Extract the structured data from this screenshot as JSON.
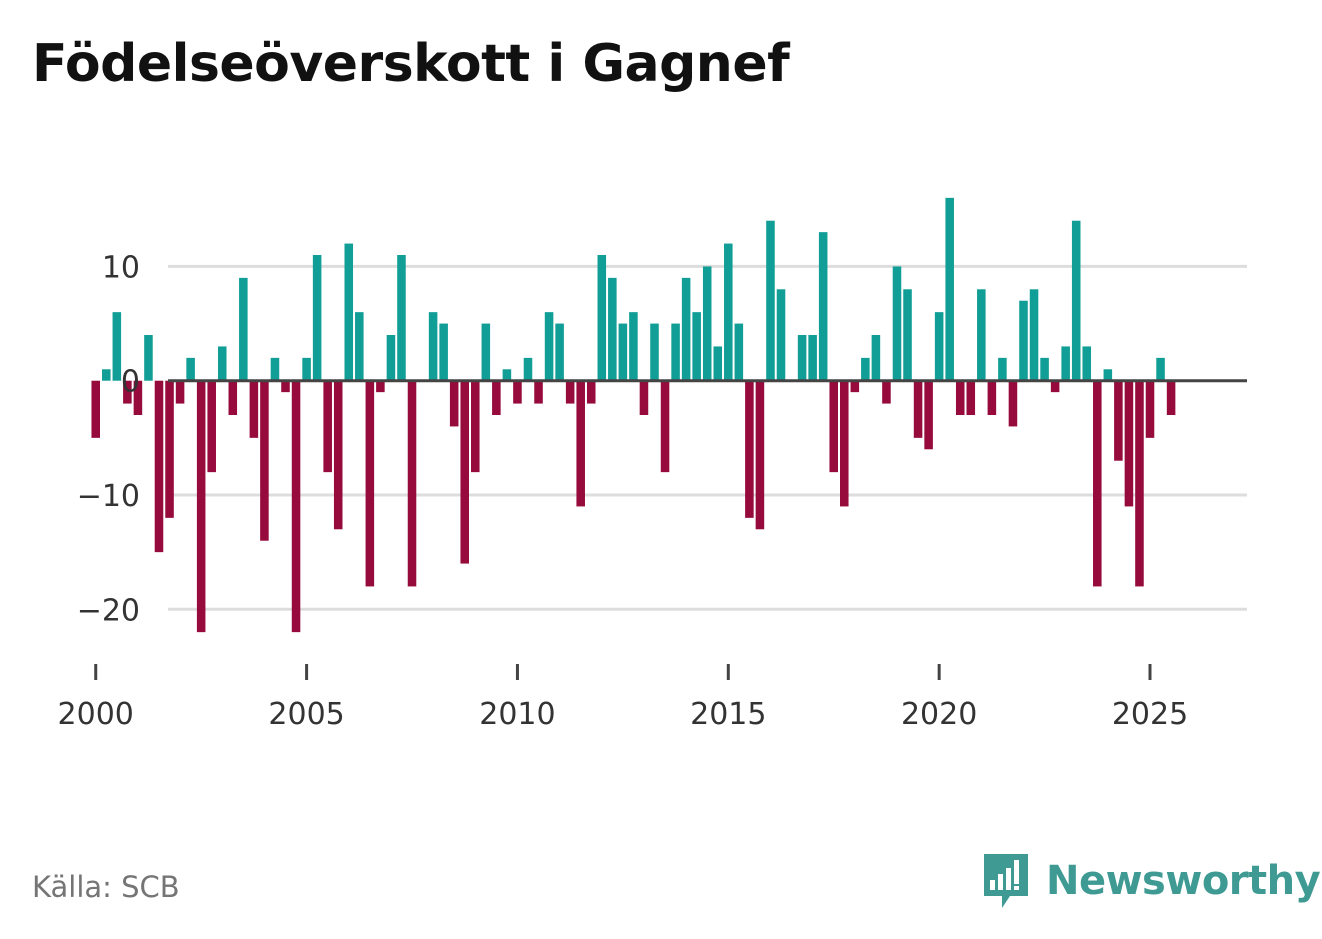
{
  "chart_data": {
    "type": "bar",
    "title": "Födelseöverskott i Gagnef",
    "xlabel": "",
    "ylabel": "",
    "source": "Källa: SCB",
    "brand": "Newsworthy",
    "ylim": [
      -24,
      18
    ],
    "xlim": [
      1999.2,
      2027.3
    ],
    "yticks": [
      10,
      0,
      -10,
      -20
    ],
    "ytick_labels": [
      "10",
      "0",
      "−10",
      "−20"
    ],
    "xticks": [
      2000,
      2005,
      2010,
      2015,
      2020,
      2025
    ],
    "xtick_labels": [
      "2000",
      "2005",
      "2010",
      "2015",
      "2020",
      "2025"
    ],
    "positive_color": "#119e96",
    "negative_color": "#960a3c",
    "start_year": 2000,
    "start_quarter": 1,
    "values": [
      -5,
      1,
      6,
      -2,
      -3,
      4,
      -15,
      -12,
      -2,
      2,
      -22,
      -8,
      3,
      -3,
      9,
      -5,
      -14,
      2,
      -1,
      -22,
      2,
      11,
      -8,
      -13,
      12,
      6,
      -18,
      -1,
      4,
      11,
      -18,
      0,
      6,
      5,
      -4,
      -16,
      -8,
      5,
      -3,
      1,
      -2,
      2,
      -2,
      6,
      5,
      -2,
      -11,
      -2,
      11,
      9,
      5,
      6,
      -3,
      5,
      -8,
      5,
      9,
      6,
      10,
      3,
      12,
      5,
      -12,
      -13,
      14,
      8,
      0,
      4,
      4,
      13,
      -8,
      -11,
      -1,
      2,
      4,
      -2,
      10,
      8,
      -5,
      -6,
      6,
      16,
      -3,
      -3,
      8,
      -3,
      2,
      -4,
      7,
      8,
      2,
      -1,
      3,
      14,
      3,
      -18,
      1,
      -7,
      -11,
      -18,
      -5,
      2,
      -3
    ]
  }
}
